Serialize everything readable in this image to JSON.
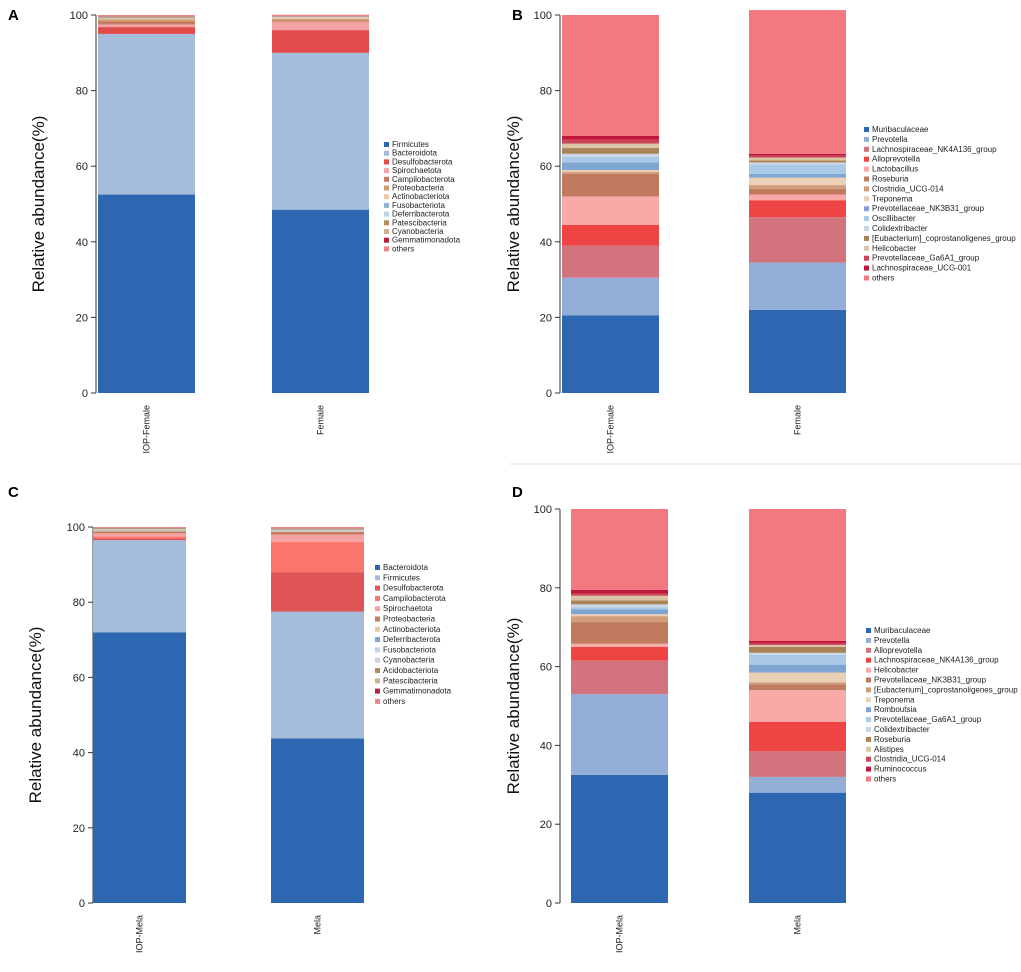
{
  "chart_data": [
    {
      "panel": "A",
      "type": "bar",
      "stacked": true,
      "ylabel": "Relative abundance(%)",
      "ylim": [
        0,
        100
      ],
      "yticks": [
        0,
        20,
        40,
        60,
        80,
        100
      ],
      "categories": [
        "IOP-Female",
        "Female"
      ],
      "series": [
        {
          "name": "Firmicutes",
          "color": "#2d67b1",
          "values": [
            52.5,
            48.5
          ]
        },
        {
          "name": "Bacteroidota",
          "color": "#a6bcdb",
          "values": [
            42.5,
            41.5
          ]
        },
        {
          "name": "Desulfobacterota",
          "color": "#e34a4a",
          "values": [
            1.8,
            6.0
          ]
        },
        {
          "name": "Spirochaetota",
          "color": "#f4a4a4",
          "values": [
            0.7,
            2.2
          ]
        },
        {
          "name": "Campilobacterota",
          "color": "#c57b62",
          "values": [
            0.8,
            0.4
          ]
        },
        {
          "name": "Proteobacteria",
          "color": "#d59a6a",
          "values": [
            0.5,
            0.4
          ]
        },
        {
          "name": "Actinobacteriota",
          "color": "#e7c9a8",
          "values": [
            0.3,
            0.3
          ]
        },
        {
          "name": "Fusobacteriota",
          "color": "#8fb3d8",
          "values": [
            0.1,
            0.1
          ]
        },
        {
          "name": "Deferribacterota",
          "color": "#bcd3e8",
          "values": [
            0.1,
            0.1
          ]
        },
        {
          "name": "Patescibacteria",
          "color": "#b08c5e",
          "values": [
            0.2,
            0.1
          ]
        },
        {
          "name": "Cyanobacteria",
          "color": "#cfb28d",
          "values": [
            0.1,
            0.1
          ]
        },
        {
          "name": "Gemmatimonadota",
          "color": "#b2243e",
          "values": [
            0.1,
            0.1
          ]
        },
        {
          "name": "others",
          "color": "#f0848c",
          "values": [
            0.3,
            0.3
          ]
        }
      ]
    },
    {
      "panel": "B",
      "type": "bar",
      "stacked": true,
      "ylabel": "Relative abundance(%)",
      "ylim": [
        0,
        100
      ],
      "yticks": [
        0,
        20,
        40,
        60,
        80,
        100
      ],
      "categories": [
        "IOP-Female",
        "Female"
      ],
      "series": [
        {
          "name": "Muribaculaceae",
          "color": "#2d67b1",
          "values": [
            20.5,
            22.0
          ]
        },
        {
          "name": "Prevotella",
          "color": "#93aed6",
          "values": [
            10.0,
            12.5
          ]
        },
        {
          "name": "Lachnospiraceae_NK4A136_group",
          "color": "#d2737e",
          "values": [
            8.5,
            12.0
          ]
        },
        {
          "name": "Alloprevotella",
          "color": "#ef4444",
          "values": [
            5.5,
            4.5
          ]
        },
        {
          "name": "Lactobacillus",
          "color": "#f9aaa6",
          "values": [
            7.5,
            1.5
          ]
        },
        {
          "name": "Roseburia",
          "color": "#c07b5e",
          "values": [
            6.0,
            1.5
          ]
        },
        {
          "name": "Clostridia_UCG-014",
          "color": "#cf9d7a",
          "values": [
            0.5,
            1.0
          ]
        },
        {
          "name": "Treponema",
          "color": "#ead0b6",
          "values": [
            0.5,
            2.0
          ]
        },
        {
          "name": "Prevotellaceae_NK3B31_group",
          "color": "#7fa6d3",
          "values": [
            2.0,
            1.0
          ]
        },
        {
          "name": "Oscillibacter",
          "color": "#a9c9e6",
          "values": [
            1.5,
            2.5
          ]
        },
        {
          "name": "Colidextribacter",
          "color": "#c9d6e6",
          "values": [
            0.8,
            0.5
          ]
        },
        {
          "name": "[Eubacterium]_coprostanoligenes_group",
          "color": "#a98357",
          "values": [
            1.5,
            0.5
          ]
        },
        {
          "name": "Helicobacter",
          "color": "#dcc4a6",
          "values": [
            1.2,
            0.8
          ]
        },
        {
          "name": "Prevotellaceae_Ga6A1_group",
          "color": "#c94458",
          "values": [
            1.0,
            0.5
          ]
        },
        {
          "name": "Lachnospiraceae_UCG-001",
          "color": "#c2173c",
          "values": [
            1.0,
            0.5
          ]
        },
        {
          "name": "others",
          "color": "#f47880",
          "values": [
            32.0,
            38.0
          ]
        }
      ]
    },
    {
      "panel": "C",
      "type": "bar",
      "stacked": true,
      "ylabel": "Relative abundance(%)",
      "ylim": [
        0,
        100
      ],
      "yticks": [
        0,
        20,
        40,
        60,
        80,
        100
      ],
      "categories": [
        "IOP-Mela",
        "Mela"
      ],
      "series": [
        {
          "name": "Bacteroidota",
          "color": "#2d67b1",
          "values": [
            72.0,
            43.8
          ]
        },
        {
          "name": "Firmicutes",
          "color": "#a6bcdb",
          "values": [
            24.5,
            33.7
          ]
        },
        {
          "name": "Desulfobacterota",
          "color": "#df5456",
          "values": [
            0.5,
            10.5
          ]
        },
        {
          "name": "Campilobacterota",
          "color": "#fb756c",
          "values": [
            0.5,
            8.0
          ]
        },
        {
          "name": "Spirochaetota",
          "color": "#f4a4a4",
          "values": [
            0.8,
            2.0
          ]
        },
        {
          "name": "Proteobacteria",
          "color": "#c57b62",
          "values": [
            0.5,
            0.7
          ]
        },
        {
          "name": "Actinobacteriota",
          "color": "#e7c9a8",
          "values": [
            0.3,
            0.3
          ]
        },
        {
          "name": "Deferribacterota",
          "color": "#7fa6d3",
          "values": [
            0.1,
            0.1
          ]
        },
        {
          "name": "Fusobacteriota",
          "color": "#bcd3e8",
          "values": [
            0.1,
            0.1
          ]
        },
        {
          "name": "Cyanobacteria",
          "color": "#c9d6e6",
          "values": [
            0.1,
            0.1
          ]
        },
        {
          "name": "Acidobacteriota",
          "color": "#b08c5e",
          "values": [
            0.2,
            0.2
          ]
        },
        {
          "name": "Patescibacteria",
          "color": "#cfb28d",
          "values": [
            0.1,
            0.1
          ]
        },
        {
          "name": "Gemmatimonadota",
          "color": "#b2243e",
          "values": [
            0.1,
            0.1
          ]
        },
        {
          "name": "others",
          "color": "#f0848c",
          "values": [
            0.2,
            0.3
          ]
        }
      ]
    },
    {
      "panel": "D",
      "type": "bar",
      "stacked": true,
      "ylabel": "Relative abundance(%)",
      "ylim": [
        0,
        100
      ],
      "yticks": [
        0,
        20,
        40,
        60,
        80,
        100
      ],
      "categories": [
        "IOP-Mela",
        "Mela"
      ],
      "series": [
        {
          "name": "Muribaculaceae",
          "color": "#2d67b1",
          "values": [
            32.5,
            28.0
          ]
        },
        {
          "name": "Prevotella",
          "color": "#93aed6",
          "values": [
            20.5,
            4.0
          ]
        },
        {
          "name": "Alloprevotella",
          "color": "#d2737e",
          "values": [
            8.5,
            6.5
          ]
        },
        {
          "name": "Lachnospiraceae_NK4A136_group",
          "color": "#ef4444",
          "values": [
            3.5,
            7.5
          ]
        },
        {
          "name": "Helicobacter",
          "color": "#f9aaa6",
          "values": [
            0.8,
            8.0
          ]
        },
        {
          "name": "Prevotellaceae_NK3B31_group",
          "color": "#c07b5e",
          "values": [
            5.5,
            1.5
          ]
        },
        {
          "name": "[Eubacterium]_coprostanoligenes_group",
          "color": "#cf9d7a",
          "values": [
            1.5,
            0.5
          ]
        },
        {
          "name": "Treponema",
          "color": "#ead0b6",
          "values": [
            0.5,
            2.5
          ]
        },
        {
          "name": "Romboutsia",
          "color": "#7fa6d3",
          "values": [
            1.2,
            2.0
          ]
        },
        {
          "name": "Prevotellaceae_Ga6A1_group",
          "color": "#a9c9e6",
          "values": [
            0.5,
            2.5
          ]
        },
        {
          "name": "Colidextribacter",
          "color": "#c9d6e6",
          "values": [
            0.8,
            0.5
          ]
        },
        {
          "name": "Roseburia",
          "color": "#a98357",
          "values": [
            1.0,
            1.5
          ]
        },
        {
          "name": "Alistipes",
          "color": "#dcc4a6",
          "values": [
            1.2,
            0.5
          ]
        },
        {
          "name": "Clostridia_UCG-014",
          "color": "#c94458",
          "values": [
            0.5,
            0.5
          ]
        },
        {
          "name": "Ruminococcus",
          "color": "#c2173c",
          "values": [
            1.0,
            0.5
          ]
        },
        {
          "name": "others",
          "color": "#f47880",
          "values": [
            20.5,
            33.5
          ]
        }
      ]
    }
  ]
}
